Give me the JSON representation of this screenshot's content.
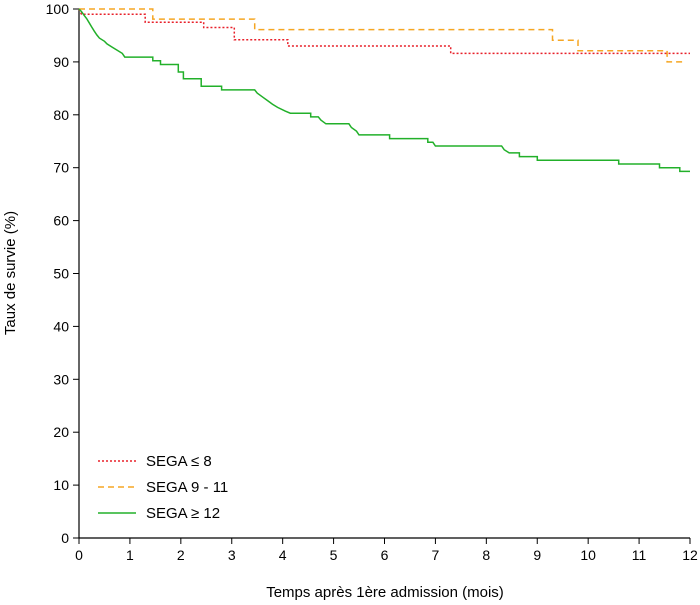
{
  "chart_data": {
    "type": "line",
    "step": true,
    "xlabel": "Temps après 1ère admission (mois)",
    "ylabel": "Taux de survie (%)",
    "xlim": [
      0,
      12
    ],
    "ylim": [
      0,
      100
    ],
    "xticks": [
      "0",
      "1",
      "2",
      "3",
      "4",
      "5",
      "6",
      "7",
      "8",
      "9",
      "10",
      "11",
      "12"
    ],
    "yticks": [
      "0",
      "10",
      "20",
      "30",
      "40",
      "50",
      "60",
      "70",
      "80",
      "90",
      "100"
    ],
    "grid": false,
    "legend_position": "bottom-left",
    "series": [
      {
        "name": "SEGA ≤ 8",
        "color": "#e8202a",
        "dash": "dotted",
        "points": [
          [
            0,
            100
          ],
          [
            0.05,
            99
          ],
          [
            1.3,
            99
          ],
          [
            1.3,
            97.5
          ],
          [
            2.45,
            97.5
          ],
          [
            2.45,
            96.5
          ],
          [
            3.05,
            96.5
          ],
          [
            3.05,
            94.2
          ],
          [
            4.1,
            94.2
          ],
          [
            4.1,
            93
          ],
          [
            7.3,
            93
          ],
          [
            7.3,
            91.6
          ],
          [
            12,
            91.6
          ]
        ]
      },
      {
        "name": "SEGA 9 - 11",
        "color": "#f5a623",
        "dash": "dashed",
        "points": [
          [
            0,
            100
          ],
          [
            1.45,
            100
          ],
          [
            1.45,
            98.1
          ],
          [
            3.45,
            98.1
          ],
          [
            3.45,
            96.1
          ],
          [
            9.3,
            96.1
          ],
          [
            9.3,
            94.1
          ],
          [
            9.8,
            94.1
          ],
          [
            9.8,
            92.1
          ],
          [
            11.55,
            92.1
          ],
          [
            11.55,
            90
          ],
          [
            11.9,
            90
          ]
        ]
      },
      {
        "name": "SEGA ≥ 12",
        "color": "#22b02a",
        "dash": "solid",
        "points": [
          [
            0,
            100
          ],
          [
            0.05,
            99.5
          ],
          [
            0.1,
            98.8
          ],
          [
            0.15,
            98.2
          ],
          [
            0.2,
            97.4
          ],
          [
            0.25,
            96.6
          ],
          [
            0.3,
            95.8
          ],
          [
            0.35,
            95.1
          ],
          [
            0.4,
            94.5
          ],
          [
            0.5,
            93.9
          ],
          [
            0.55,
            93.4
          ],
          [
            0.65,
            92.8
          ],
          [
            0.75,
            92.2
          ],
          [
            0.85,
            91.6
          ],
          [
            0.9,
            90.9
          ],
          [
            1.45,
            90.9
          ],
          [
            1.45,
            90.2
          ],
          [
            1.6,
            90.2
          ],
          [
            1.6,
            89.5
          ],
          [
            1.95,
            89.5
          ],
          [
            1.95,
            88.1
          ],
          [
            2.05,
            88.1
          ],
          [
            2.05,
            86.8
          ],
          [
            2.4,
            86.8
          ],
          [
            2.4,
            85.4
          ],
          [
            2.8,
            85.4
          ],
          [
            2.8,
            84.7
          ],
          [
            3.45,
            84.7
          ],
          [
            3.5,
            84.1
          ],
          [
            3.6,
            83.4
          ],
          [
            3.7,
            82.7
          ],
          [
            3.8,
            82
          ],
          [
            3.9,
            81.4
          ],
          [
            4.05,
            80.7
          ],
          [
            4.15,
            80.3
          ],
          [
            4.55,
            80.3
          ],
          [
            4.55,
            79.6
          ],
          [
            4.7,
            79.6
          ],
          [
            4.75,
            79
          ],
          [
            4.85,
            78.3
          ],
          [
            5.3,
            78.3
          ],
          [
            5.35,
            77.6
          ],
          [
            5.45,
            76.9
          ],
          [
            5.5,
            76.2
          ],
          [
            6.1,
            76.2
          ],
          [
            6.1,
            75.5
          ],
          [
            6.85,
            75.5
          ],
          [
            6.85,
            74.8
          ],
          [
            6.95,
            74.8
          ],
          [
            7,
            74.1
          ],
          [
            8.3,
            74.1
          ],
          [
            8.35,
            73.4
          ],
          [
            8.45,
            72.8
          ],
          [
            8.65,
            72.8
          ],
          [
            8.65,
            72.1
          ],
          [
            9.0,
            72.1
          ],
          [
            9.0,
            71.4
          ],
          [
            10.6,
            71.4
          ],
          [
            10.6,
            70.7
          ],
          [
            11.4,
            70.7
          ],
          [
            11.4,
            70
          ],
          [
            11.8,
            70
          ],
          [
            11.8,
            69.3
          ],
          [
            12,
            69.3
          ]
        ]
      }
    ]
  }
}
